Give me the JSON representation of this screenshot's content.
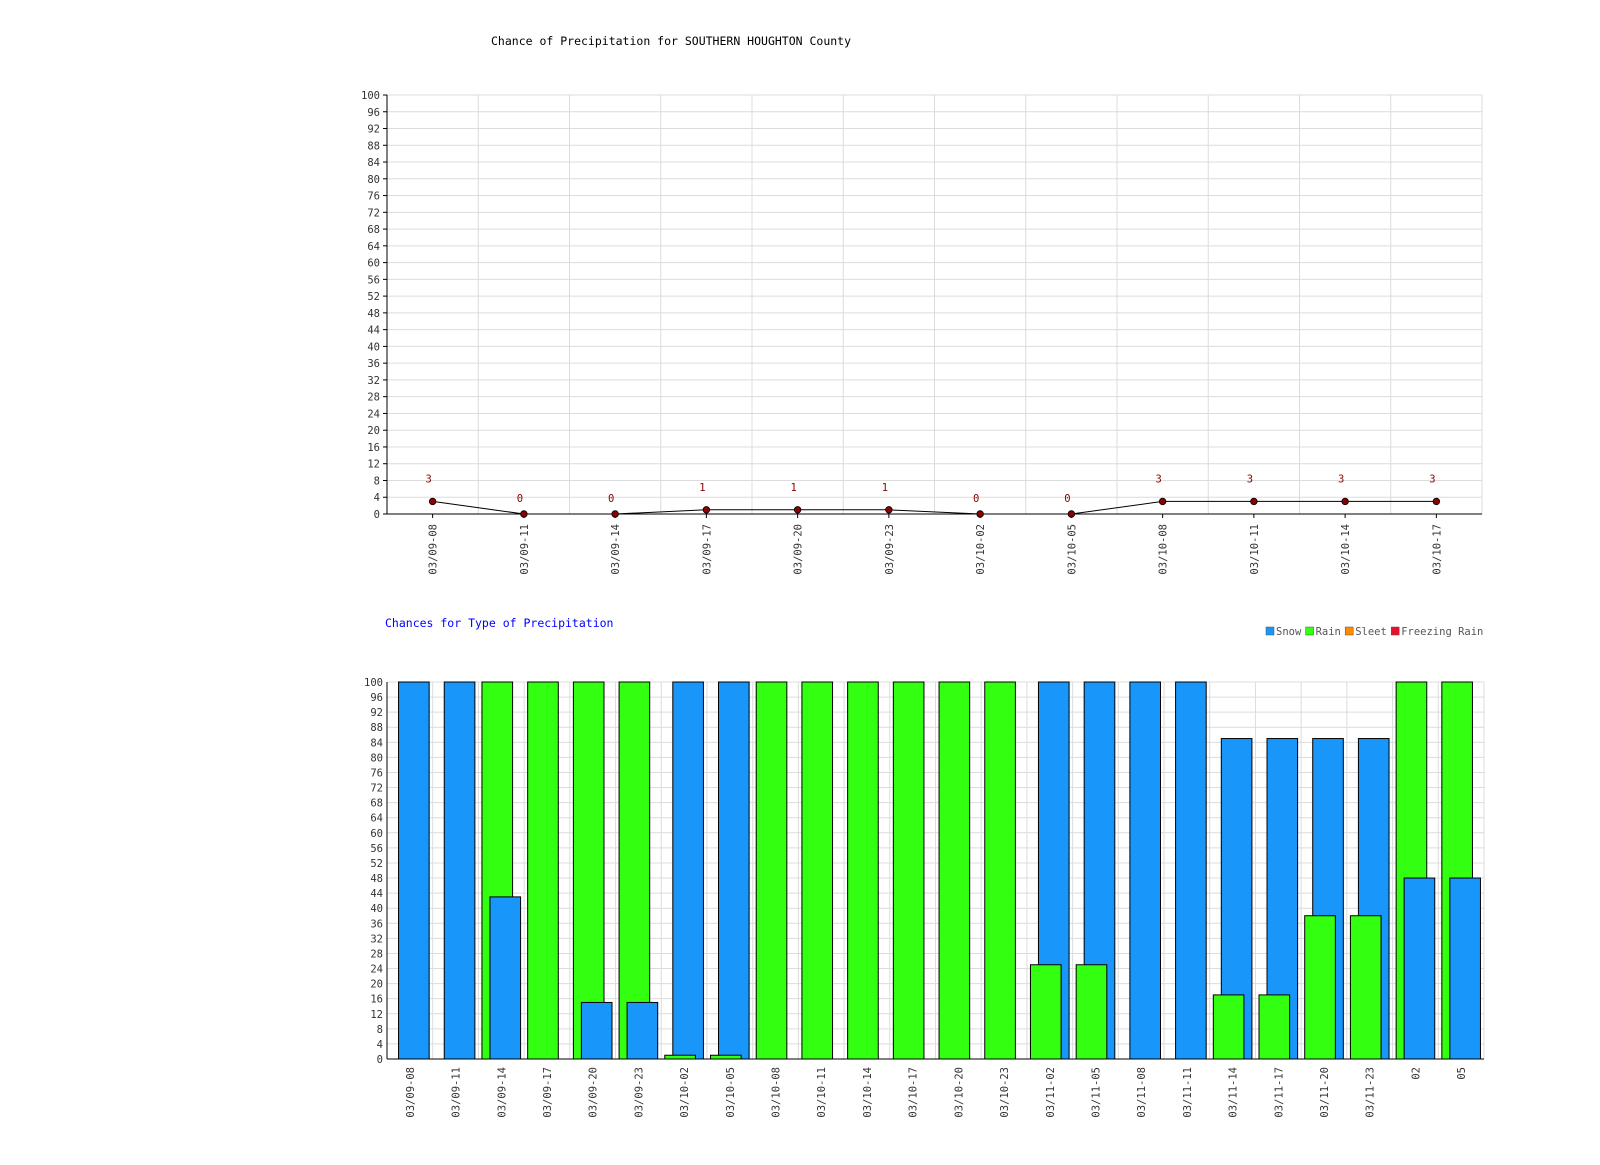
{
  "chart_data": [
    {
      "type": "line",
      "title": "Chance of Precipitation for SOUTHERN HOUGHTON County",
      "xlabel": "",
      "ylabel": "",
      "ylim": [
        0,
        100
      ],
      "y_tick_step": 4,
      "grid": true,
      "categories": [
        "03/09-08",
        "03/09-11",
        "03/09-14",
        "03/09-17",
        "03/09-20",
        "03/09-23",
        "03/10-02",
        "03/10-05",
        "03/10-08",
        "03/10-11",
        "03/10-14",
        "03/10-17"
      ],
      "values": [
        3,
        0,
        0,
        1,
        1,
        1,
        0,
        0,
        3,
        3,
        3,
        3
      ],
      "point_labels": [
        "3",
        "0",
        "0",
        "1",
        "1",
        "1",
        "0",
        "0",
        "3",
        "3",
        "3",
        "3"
      ],
      "colors": {
        "line": "#000000",
        "marker": "#8b0000",
        "label": "#8b0000"
      }
    },
    {
      "type": "bar",
      "title": "Chances for Type of Precipitation",
      "xlabel": "",
      "ylabel": "",
      "ylim": [
        0,
        100
      ],
      "y_tick_step": 4,
      "grid": true,
      "legend_position": "top-right",
      "categories": [
        "03/09-08",
        "03/09-11",
        "03/09-14",
        "03/09-17",
        "03/09-20",
        "03/09-23",
        "03/10-02",
        "03/10-05",
        "03/10-08",
        "03/10-11",
        "03/10-14",
        "03/10-17",
        "03/10-20",
        "03/10-23",
        "03/11-02",
        "03/11-05",
        "03/11-08",
        "03/11-11",
        "03/11-14",
        "03/11-17",
        "03/11-20",
        "03/11-23",
        "02",
        "05"
      ],
      "series": [
        {
          "name": "Snow",
          "color": "#1896fa",
          "values": [
            100,
            100,
            43,
            0,
            15,
            15,
            100,
            100,
            0,
            0,
            0,
            0,
            0,
            0,
            100,
            100,
            100,
            100,
            85,
            85,
            85,
            85,
            48,
            48
          ]
        },
        {
          "name": "Rain",
          "color": "#33ff11",
          "values": [
            0,
            0,
            100,
            100,
            100,
            100,
            1,
            1,
            100,
            100,
            100,
            100,
            100,
            100,
            25,
            25,
            0,
            0,
            17,
            17,
            38,
            38,
            100,
            100
          ]
        },
        {
          "name": "Sleet",
          "color": "#ff8a00",
          "values": [
            0,
            0,
            0,
            0,
            0,
            0,
            0,
            0,
            0,
            0,
            0,
            0,
            0,
            0,
            0,
            0,
            0,
            0,
            0,
            0,
            0,
            0,
            0,
            0
          ]
        },
        {
          "name": "Freezing Rain",
          "color": "#e8102a",
          "values": [
            0,
            0,
            0,
            0,
            0,
            0,
            0,
            0,
            0,
            0,
            0,
            0,
            0,
            0,
            0,
            0,
            0,
            0,
            0,
            0,
            0,
            0,
            0,
            0
          ]
        }
      ]
    }
  ]
}
